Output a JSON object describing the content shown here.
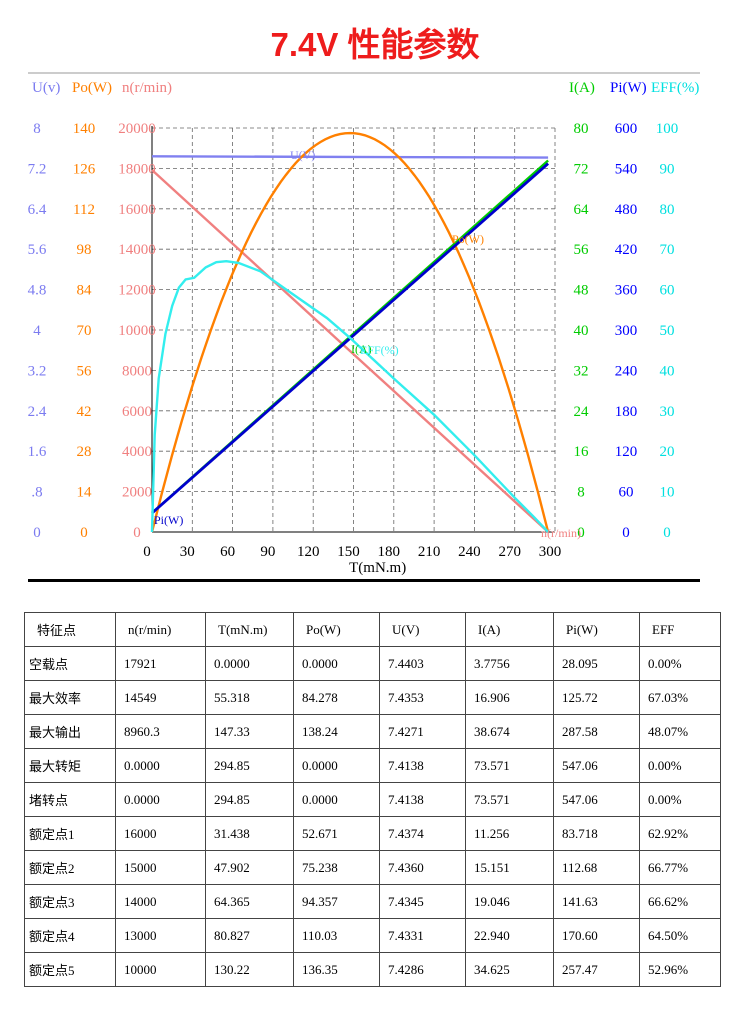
{
  "title": "7.4V 性能参数",
  "chart_data": {
    "type": "line",
    "xlabel": "T(mN.m)",
    "xlim": [
      0,
      300
    ],
    "x_ticks": [
      "0",
      "30",
      "60",
      "90",
      "120",
      "150",
      "180",
      "210",
      "240",
      "270",
      "300"
    ],
    "grid": true,
    "left_axes": [
      {
        "label": "U(v)",
        "color": "#7b7bf0",
        "ticks": [
          "8",
          "7.2",
          "6.4",
          "5.6",
          "4.8",
          "4",
          "3.2",
          "2.4",
          "1.6",
          ".8",
          "0"
        ]
      },
      {
        "label": "Po(W)",
        "color": "#ff8000",
        "ticks": [
          "140",
          "126",
          "112",
          "98",
          "84",
          "70",
          "56",
          "42",
          "28",
          "14",
          "0"
        ]
      },
      {
        "label": "n(r/min)",
        "color": "#f08080",
        "ticks": [
          "20000",
          "18000",
          "16000",
          "14000",
          "12000",
          "10000",
          "8000",
          "6000",
          "4000",
          "2000",
          "0"
        ]
      }
    ],
    "right_axes": [
      {
        "label": "I(A)",
        "color": "#00cc00",
        "ticks": [
          "80",
          "72",
          "64",
          "56",
          "48",
          "40",
          "32",
          "24",
          "16",
          "8",
          "0"
        ]
      },
      {
        "label": "Pi(W)",
        "color": "#0000ff",
        "ticks": [
          "600",
          "540",
          "480",
          "420",
          "360",
          "300",
          "240",
          "180",
          "120",
          "60",
          "0"
        ]
      },
      {
        "label": "EFF(%)",
        "color": "#00e0e0",
        "ticks": [
          "100",
          "90",
          "80",
          "70",
          "60",
          "50",
          "40",
          "30",
          "20",
          "10",
          "0"
        ]
      }
    ],
    "series": [
      {
        "name": "U(V)",
        "color": "#8080f0",
        "ymax": 8,
        "x": [
          0,
          294.85
        ],
        "y": [
          7.4403,
          7.4138
        ]
      },
      {
        "name": "n(r/min)",
        "color": "#f08080",
        "ymax": 20000,
        "x": [
          0,
          294.85
        ],
        "y": [
          17921,
          0
        ]
      },
      {
        "name": "Po(W)",
        "color": "#ff8000",
        "ymax": 140,
        "quadratic": true,
        "x": [
          0,
          147.33,
          294.85
        ],
        "y": [
          0,
          138.24,
          0
        ]
      },
      {
        "name": "I(A)",
        "color": "#00cc00",
        "ymax": 80,
        "x": [
          0,
          294.85
        ],
        "y": [
          3.7756,
          73.571
        ]
      },
      {
        "name": "Pi(W)",
        "color": "#0000cc",
        "ymax": 600,
        "x": [
          0,
          294.85
        ],
        "y": [
          28.095,
          547.06
        ]
      },
      {
        "name": "EFF(%)",
        "color": "#33eeee",
        "ymax": 100,
        "x": [
          0,
          2,
          5,
          10,
          15,
          20,
          25,
          31.438,
          40,
          47.902,
          55.318,
          64.365,
          80.827,
          100,
          130.22,
          147.33,
          180,
          210,
          240,
          270,
          285,
          294.85
        ],
        "y": [
          0,
          24,
          38,
          49,
          56,
          60.5,
          62.5,
          62.92,
          65.5,
          66.77,
          67.03,
          66.62,
          64.5,
          60,
          52.96,
          48.07,
          38,
          29,
          19,
          8.5,
          3.5,
          0
        ]
      }
    ]
  },
  "table": {
    "headers": [
      "特征点",
      "n(r/min)",
      "T(mN.m)",
      "Po(W)",
      "U(V)",
      "I(A)",
      "Pi(W)",
      "EFF"
    ],
    "rows": [
      [
        "空载点",
        "17921",
        "0.0000",
        "0.0000",
        "7.4403",
        "3.7756",
        "28.095",
        "0.00%"
      ],
      [
        "最大效率",
        "14549",
        "55.318",
        "84.278",
        "7.4353",
        "16.906",
        "125.72",
        "67.03%"
      ],
      [
        "最大输出",
        "8960.3",
        "147.33",
        "138.24",
        "7.4271",
        "38.674",
        "287.58",
        "48.07%"
      ],
      [
        "最大转矩",
        "0.0000",
        "294.85",
        "0.0000",
        "7.4138",
        "73.571",
        "547.06",
        "0.00%"
      ],
      [
        "堵转点",
        "0.0000",
        "294.85",
        "0.0000",
        "7.4138",
        "73.571",
        "547.06",
        "0.00%"
      ],
      [
        "额定点1",
        "16000",
        "31.438",
        "52.671",
        "7.4374",
        "11.256",
        "83.718",
        "62.92%"
      ],
      [
        "额定点2",
        "15000",
        "47.902",
        "75.238",
        "7.4360",
        "15.151",
        "112.68",
        "66.77%"
      ],
      [
        "额定点3",
        "14000",
        "64.365",
        "94.357",
        "7.4345",
        "19.046",
        "141.63",
        "66.62%"
      ],
      [
        "额定点4",
        "13000",
        "80.827",
        "110.03",
        "7.4331",
        "22.940",
        "170.60",
        "64.50%"
      ],
      [
        "额定点5",
        "10000",
        "130.22",
        "136.35",
        "7.4286",
        "34.625",
        "257.47",
        "52.96%"
      ]
    ]
  }
}
